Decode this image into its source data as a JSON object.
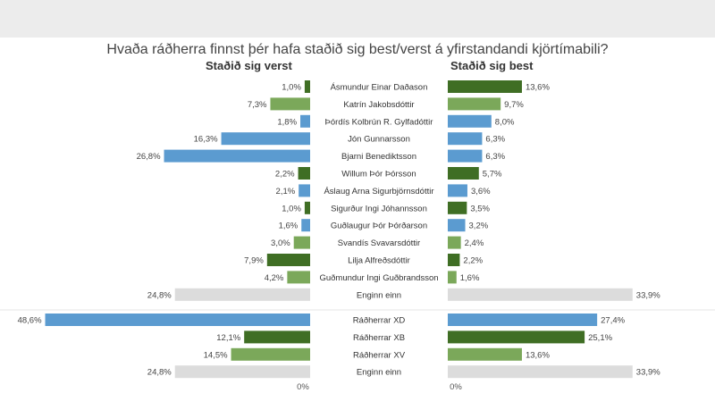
{
  "chart_data": {
    "type": "bar",
    "title": "Hvaða ráðherra finnst þér hafa staðið sig best/verst á yfirstandandi kjörtímabili?",
    "left_header": "Staðið sig verst",
    "right_header": "Staðið sig best",
    "zero_label": "0%",
    "colors": {
      "dark_green": "#3f6e24",
      "light_green": "#7ba85a",
      "blue": "#5b9bd0",
      "gray": "#dcdcdc"
    },
    "groups": [
      {
        "rows": [
          {
            "name": "Ásmundur Einar Daðason",
            "worst": 1.0,
            "best": 13.6,
            "worst_label": "1,0%",
            "best_label": "13,6%",
            "color": "dark_green"
          },
          {
            "name": "Katrín Jakobsdóttir",
            "worst": 7.3,
            "best": 9.7,
            "worst_label": "7,3%",
            "best_label": "9,7%",
            "color": "light_green"
          },
          {
            "name": "Þórdís Kolbrún R. Gylfadóttir",
            "worst": 1.8,
            "best": 8.0,
            "worst_label": "1,8%",
            "best_label": "8,0%",
            "color": "blue"
          },
          {
            "name": "Jón Gunnarsson",
            "worst": 16.3,
            "best": 6.3,
            "worst_label": "16,3%",
            "best_label": "6,3%",
            "color": "blue"
          },
          {
            "name": "Bjarni Benediktsson",
            "worst": 26.8,
            "best": 6.3,
            "worst_label": "26,8%",
            "best_label": "6,3%",
            "color": "blue"
          },
          {
            "name": "Willum Þór Þórsson",
            "worst": 2.2,
            "best": 5.7,
            "worst_label": "2,2%",
            "best_label": "5,7%",
            "color": "dark_green"
          },
          {
            "name": "Áslaug Arna Sigurbjörnsdóttir",
            "worst": 2.1,
            "best": 3.6,
            "worst_label": "2,1%",
            "best_label": "3,6%",
            "color": "blue"
          },
          {
            "name": "Sigurður Ingi Jóhannsson",
            "worst": 1.0,
            "best": 3.5,
            "worst_label": "1,0%",
            "best_label": "3,5%",
            "color": "dark_green"
          },
          {
            "name": "Guðlaugur Þór Þórðarson",
            "worst": 1.6,
            "best": 3.2,
            "worst_label": "1,6%",
            "best_label": "3,2%",
            "color": "blue"
          },
          {
            "name": "Svandís Svavarsdóttir",
            "worst": 3.0,
            "best": 2.4,
            "worst_label": "3,0%",
            "best_label": "2,4%",
            "color": "light_green"
          },
          {
            "name": "Lilja Alfreðsdóttir",
            "worst": 7.9,
            "best": 2.2,
            "worst_label": "7,9%",
            "best_label": "2,2%",
            "color": "dark_green"
          },
          {
            "name": "Guðmundur Ingi Guðbrandsson",
            "worst": 4.2,
            "best": 1.6,
            "worst_label": "4,2%",
            "best_label": "1,6%",
            "color": "light_green"
          },
          {
            "name": "Enginn einn",
            "worst": 24.8,
            "best": 33.9,
            "worst_label": "24,8%",
            "best_label": "33,9%",
            "color": "gray"
          }
        ]
      },
      {
        "rows": [
          {
            "name": "Ráðherrar XD",
            "worst": 48.6,
            "best": 27.4,
            "worst_label": "48,6%",
            "best_label": "27,4%",
            "color": "blue"
          },
          {
            "name": "Ráðherrar XB",
            "worst": 12.1,
            "best": 25.1,
            "worst_label": "12,1%",
            "best_label": "25,1%",
            "color": "dark_green"
          },
          {
            "name": "Ráðherrar XV",
            "worst": 14.5,
            "best": 13.6,
            "worst_label": "14,5%",
            "best_label": "13,6%",
            "color": "light_green"
          },
          {
            "name": "Enginn einn",
            "worst": 24.8,
            "best": 33.9,
            "worst_label": "24,8%",
            "best_label": "33,9%",
            "color": "gray"
          }
        ]
      }
    ]
  }
}
